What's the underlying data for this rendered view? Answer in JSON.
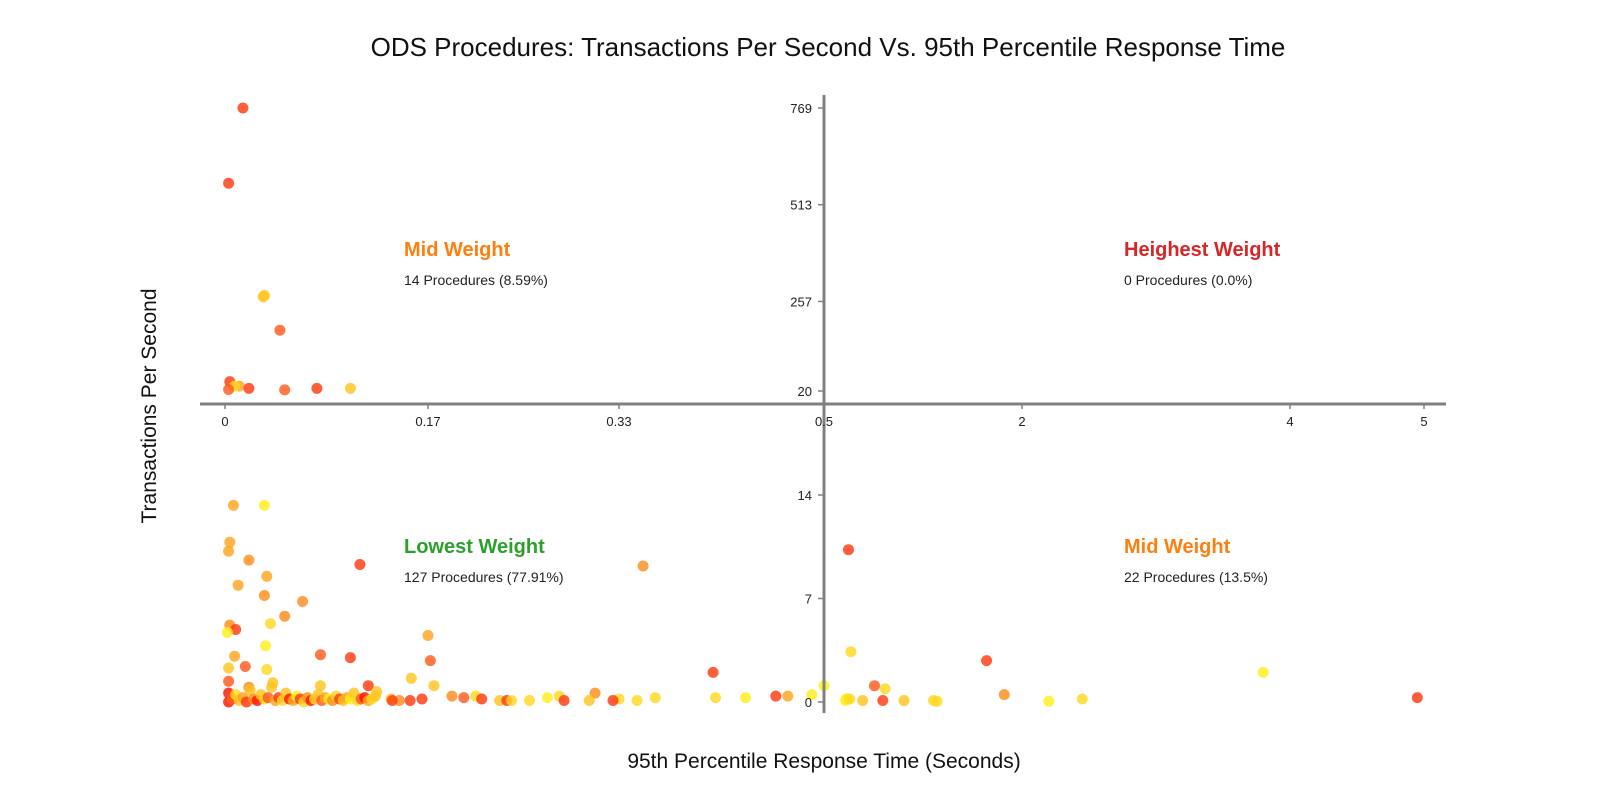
{
  "chart_data": {
    "type": "scatter",
    "title": "ODS Procedures: Transactions Per Second Vs. 95th Percentile Response Time",
    "xlabel": "95th Percentile Response Time (Seconds)",
    "ylabel": "Transactions Per Second",
    "grid": false,
    "x_thresholds": [
      0.5,
      20
    ],
    "x_ticks_left": [
      "0",
      "0.17",
      "0.33"
    ],
    "x_ticks_right": [
      "0.5",
      "2",
      "4",
      "5"
    ],
    "y_ticks_top": [
      "20",
      "257",
      "513",
      "769"
    ],
    "y_ticks_bottom": [
      "0",
      "7",
      "14"
    ],
    "quadrants": [
      {
        "position": "top-left",
        "title": "Mid Weight",
        "subtitle": "14 Procedures (8.59%)",
        "color": "#FF7F0E"
      },
      {
        "position": "top-right",
        "title": "Heighest Weight",
        "subtitle": "0 Procedures (0.0%)",
        "color": "#D62728"
      },
      {
        "position": "bottom-left",
        "title": "Lowest Weight",
        "subtitle": "127 Procedures (77.91%)",
        "color": "#2CA02C"
      },
      {
        "position": "bottom-right",
        "title": "Mid Weight",
        "subtitle": "22 Procedures (13.5%)",
        "color": "#FF7F0E"
      }
    ],
    "colors": [
      "#FF1500",
      "#FF3A10",
      "#FF5A1C",
      "#FF8C1C",
      "#FFA51E",
      "#FFC51E",
      "#FFD822",
      "#FFEE1C"
    ],
    "points": [
      [
        0.015,
        769,
        1
      ],
      [
        0.003,
        570,
        1
      ],
      [
        0.033,
        273,
        5
      ],
      [
        0.032,
        269,
        5
      ],
      [
        0.046,
        181,
        2
      ],
      [
        0.004,
        45,
        1
      ],
      [
        0.012,
        33,
        4
      ],
      [
        0.008,
        33,
        6
      ],
      [
        0.003,
        24,
        2
      ],
      [
        0.02,
        27,
        1
      ],
      [
        0.05,
        23,
        2
      ],
      [
        0.077,
        27,
        1
      ],
      [
        0.105,
        27,
        5
      ],
      [
        0.105,
        3,
        1
      ],
      [
        0.53,
        10.3,
        1
      ],
      [
        0.55,
        3.4,
        6
      ],
      [
        0.75,
        1.1,
        2
      ],
      [
        0.84,
        0.9,
        6
      ],
      [
        1.0,
        0.1,
        5
      ],
      [
        0.82,
        0.1,
        1
      ],
      [
        0.65,
        0.1,
        5
      ],
      [
        0.52,
        0.2,
        7
      ],
      [
        0.5,
        1.1,
        7
      ],
      [
        0.51,
        0.2,
        7
      ],
      [
        0.505,
        0.1,
        7
      ],
      [
        0.54,
        0.2,
        6
      ],
      [
        1.25,
        0.1,
        6
      ],
      [
        1.28,
        0.05,
        6
      ],
      [
        1.7,
        2.8,
        1
      ],
      [
        1.85,
        0.5,
        3
      ],
      [
        2.2,
        0.05,
        7
      ],
      [
        2.45,
        0.2,
        6
      ],
      [
        3.8,
        2.0,
        7
      ],
      [
        4.95,
        0.3,
        1
      ],
      [
        0.007,
        13.3,
        4
      ],
      [
        0.033,
        13.3,
        7
      ],
      [
        0.004,
        10.8,
        4
      ],
      [
        0.003,
        10.2,
        4
      ],
      [
        0.02,
        9.6,
        3
      ],
      [
        0.113,
        9.3,
        1
      ],
      [
        0.35,
        9.2,
        3
      ],
      [
        0.035,
        8.5,
        4
      ],
      [
        0.011,
        7.9,
        4
      ],
      [
        0.033,
        7.2,
        3
      ],
      [
        0.065,
        6.8,
        3
      ],
      [
        0.05,
        5.8,
        3
      ],
      [
        0.038,
        5.3,
        6
      ],
      [
        0.004,
        5.2,
        3
      ],
      [
        0.009,
        4.9,
        1
      ],
      [
        0.002,
        4.7,
        7
      ],
      [
        0.17,
        4.5,
        4
      ],
      [
        0.034,
        3.8,
        7
      ],
      [
        0.08,
        3.2,
        2
      ],
      [
        0.008,
        3.1,
        4
      ],
      [
        0.172,
        2.8,
        2
      ],
      [
        0.017,
        2.4,
        2
      ],
      [
        0.003,
        2.3,
        5
      ],
      [
        0.035,
        2.2,
        6
      ],
      [
        0.156,
        1.6,
        5
      ],
      [
        0.408,
        2.0,
        1
      ],
      [
        0.003,
        1.4,
        2
      ],
      [
        0.04,
        1.3,
        5
      ],
      [
        0.12,
        1.1,
        1
      ],
      [
        0.175,
        1.1,
        5
      ],
      [
        0.08,
        1.1,
        5
      ],
      [
        0.02,
        1.0,
        3
      ],
      [
        0.127,
        0.7,
        5
      ],
      [
        0.31,
        0.6,
        3
      ],
      [
        0.47,
        0.4,
        4
      ],
      [
        0.46,
        0.4,
        1
      ],
      [
        0.19,
        0.4,
        3
      ],
      [
        0.2,
        0.3,
        2
      ],
      [
        0.21,
        0.4,
        6
      ],
      [
        0.27,
        0.3,
        7
      ],
      [
        0.28,
        0.4,
        6
      ],
      [
        0.33,
        0.2,
        6
      ],
      [
        0.36,
        0.3,
        6
      ],
      [
        0.41,
        0.3,
        6
      ],
      [
        0.435,
        0.3,
        7
      ],
      [
        0.49,
        0.5,
        7
      ],
      [
        0.215,
        0.2,
        1
      ],
      [
        0.23,
        0.1,
        5
      ],
      [
        0.236,
        0.1,
        1
      ],
      [
        0.24,
        0.1,
        6
      ],
      [
        0.255,
        0.1,
        6
      ],
      [
        0.284,
        0.1,
        1
      ],
      [
        0.305,
        0.1,
        5
      ],
      [
        0.325,
        0.1,
        1
      ],
      [
        0.345,
        0.1,
        6
      ],
      [
        0.155,
        0.1,
        1
      ],
      [
        0.165,
        0.2,
        1
      ],
      [
        0.146,
        0.1,
        3
      ],
      [
        0.139,
        0.2,
        5
      ],
      [
        0.14,
        0.1,
        1
      ],
      [
        0.003,
        0.6,
        0
      ],
      [
        0.003,
        0.0,
        0
      ],
      [
        0.006,
        0.2,
        2
      ],
      [
        0.009,
        0.5,
        6
      ],
      [
        0.012,
        0.1,
        5
      ],
      [
        0.015,
        0.3,
        4
      ],
      [
        0.018,
        0.0,
        1
      ],
      [
        0.021,
        0.8,
        5
      ],
      [
        0.024,
        0.2,
        3
      ],
      [
        0.027,
        0.1,
        0
      ],
      [
        0.03,
        0.5,
        5
      ],
      [
        0.033,
        0.2,
        6
      ],
      [
        0.036,
        0.3,
        2
      ],
      [
        0.039,
        1.0,
        5
      ],
      [
        0.042,
        0.1,
        4
      ],
      [
        0.045,
        0.3,
        1
      ],
      [
        0.048,
        0.1,
        6
      ],
      [
        0.051,
        0.6,
        5
      ],
      [
        0.054,
        0.2,
        0
      ],
      [
        0.057,
        0.1,
        4
      ],
      [
        0.06,
        0.4,
        7
      ],
      [
        0.063,
        0.2,
        1
      ],
      [
        0.066,
        0.0,
        6
      ],
      [
        0.069,
        0.3,
        3
      ],
      [
        0.072,
        0.1,
        0
      ],
      [
        0.075,
        0.2,
        6
      ],
      [
        0.078,
        0.5,
        5
      ],
      [
        0.081,
        0.1,
        2
      ],
      [
        0.084,
        0.3,
        4
      ],
      [
        0.087,
        0.2,
        7
      ],
      [
        0.09,
        0.1,
        3
      ],
      [
        0.093,
        0.4,
        6
      ],
      [
        0.096,
        0.2,
        1
      ],
      [
        0.099,
        0.1,
        5
      ],
      [
        0.102,
        0.3,
        4
      ],
      [
        0.105,
        0.2,
        7
      ],
      [
        0.108,
        0.6,
        5
      ],
      [
        0.111,
        0.1,
        6
      ],
      [
        0.114,
        0.2,
        2
      ],
      [
        0.117,
        0.3,
        0
      ],
      [
        0.12,
        0.1,
        4
      ],
      [
        0.123,
        0.2,
        6
      ],
      [
        0.126,
        0.4,
        5
      ]
    ]
  }
}
